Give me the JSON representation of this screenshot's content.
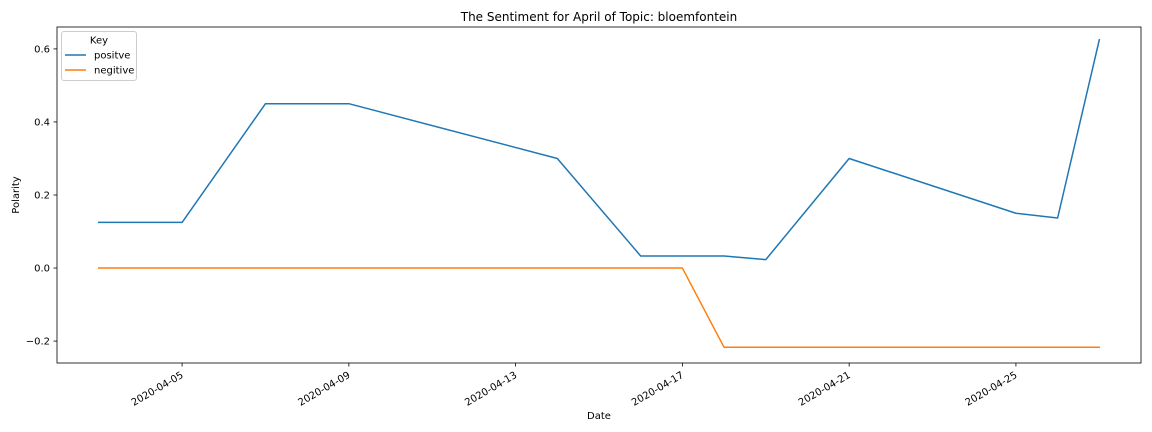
{
  "chart_data": {
    "type": "line",
    "title": "The Sentiment for April of Topic: bloemfontein",
    "xlabel": "Date",
    "ylabel": "Polarity",
    "x_ticks": [
      "2020-04-05",
      "2020-04-09",
      "2020-04-13",
      "2020-04-17",
      "2020-04-21",
      "2020-04-25"
    ],
    "y_ticks": [
      "−0.2",
      "0.0",
      "0.2",
      "0.4",
      "0.6"
    ],
    "xlim": [
      "2020-04-02",
      "2020-04-28"
    ],
    "ylim": [
      -0.26,
      0.66
    ],
    "grid": false,
    "legend": {
      "title": "Key",
      "placement": "top-left"
    },
    "series": [
      {
        "name": "positve",
        "color": "#1f77b4",
        "points": [
          {
            "x": "2020-04-03",
            "y": 0.125
          },
          {
            "x": "2020-04-05",
            "y": 0.125
          },
          {
            "x": "2020-04-07",
            "y": 0.45
          },
          {
            "x": "2020-04-09",
            "y": 0.45
          },
          {
            "x": "2020-04-14",
            "y": 0.3
          },
          {
            "x": "2020-04-16",
            "y": 0.033
          },
          {
            "x": "2020-04-18",
            "y": 0.033
          },
          {
            "x": "2020-04-19",
            "y": 0.023
          },
          {
            "x": "2020-04-21",
            "y": 0.3
          },
          {
            "x": "2020-04-25",
            "y": 0.15
          },
          {
            "x": "2020-04-26",
            "y": 0.137
          },
          {
            "x": "2020-04-27",
            "y": 0.625
          }
        ]
      },
      {
        "name": "negitive",
        "color": "#ff7f0e",
        "points": [
          {
            "x": "2020-04-03",
            "y": 0.0
          },
          {
            "x": "2020-04-17",
            "y": 0.0
          },
          {
            "x": "2020-04-18",
            "y": -0.217
          },
          {
            "x": "2020-04-27",
            "y": -0.217
          }
        ]
      }
    ]
  }
}
